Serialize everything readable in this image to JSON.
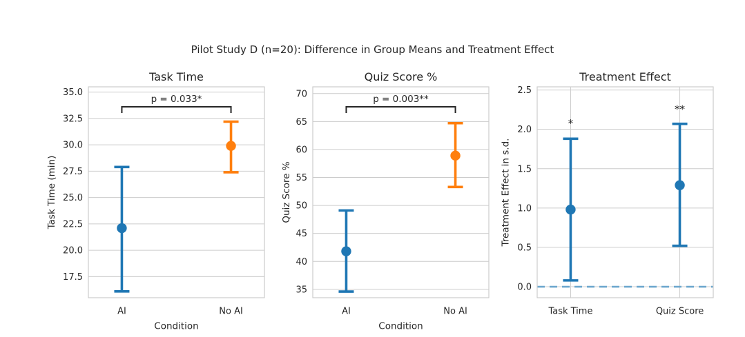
{
  "figure": {
    "suptitle": "Pilot Study D (n=20): Difference in Group Means and Treatment Effect",
    "background": "#ffffff",
    "text_color": "#262626",
    "grid_color": "#cccccc",
    "spine_color": "#cccccc",
    "annotation_color": "#262626",
    "accent_blue": "#1f77b4",
    "accent_orange": "#ff7f0e"
  },
  "chart_data": [
    {
      "type": "errorbar",
      "title": "Task Time",
      "ylabel": "Task Time (min)",
      "xlabel": "Condition",
      "ylim": [
        15.5,
        35.5
      ],
      "yticks": [
        17.5,
        20.0,
        22.5,
        25.0,
        27.5,
        30.0,
        32.5,
        35.0
      ],
      "ytick_decimals": 1,
      "grid_x": false,
      "legend": "none",
      "categories": [
        "AI",
        "No AI"
      ],
      "series": [
        {
          "category": "AI",
          "mean": 22.1,
          "ci_low": 16.1,
          "ci_high": 27.9,
          "color": "#1f77b4"
        },
        {
          "category": "No AI",
          "mean": 29.9,
          "ci_low": 27.4,
          "ci_high": 32.2,
          "color": "#ff7f0e"
        }
      ],
      "significance": {
        "label": "p = 0.033*",
        "from": "AI",
        "to": "No AI"
      }
    },
    {
      "type": "errorbar",
      "title": "Quiz Score %",
      "ylabel": "Quiz Score %",
      "xlabel": "Condition",
      "ylim": [
        33.5,
        71.2
      ],
      "yticks": [
        35,
        40,
        45,
        50,
        55,
        60,
        65,
        70
      ],
      "ytick_decimals": 0,
      "grid_x": false,
      "legend": "none",
      "categories": [
        "AI",
        "No AI"
      ],
      "series": [
        {
          "category": "AI",
          "mean": 41.8,
          "ci_low": 34.6,
          "ci_high": 49.1,
          "color": "#1f77b4"
        },
        {
          "category": "No AI",
          "mean": 58.9,
          "ci_low": 53.3,
          "ci_high": 64.7,
          "color": "#ff7f0e"
        }
      ],
      "significance": {
        "label": "p = 0.003**",
        "from": "AI",
        "to": "No AI"
      }
    },
    {
      "type": "errorbar",
      "title": "Treatment Effect",
      "ylabel": "Treatment Effect in s.d.",
      "xlabel": "",
      "ylim": [
        -0.14,
        2.54
      ],
      "yticks": [
        0.0,
        0.5,
        1.0,
        1.5,
        2.0,
        2.5
      ],
      "ytick_decimals": 1,
      "grid_x": true,
      "legend": "none",
      "categories": [
        "Task Time",
        "Quiz Score"
      ],
      "series": [
        {
          "category": "Task Time",
          "mean": 0.98,
          "ci_low": 0.08,
          "ci_high": 1.88,
          "color": "#1f77b4",
          "star": "*",
          "star_y": 2.12
        },
        {
          "category": "Quiz Score",
          "mean": 1.29,
          "ci_low": 0.52,
          "ci_high": 2.07,
          "color": "#1f77b4",
          "star": "**",
          "star_y": 2.3
        }
      ],
      "zero_line": {
        "y": 0,
        "color": "#6da7ce",
        "style": "dashed"
      }
    }
  ]
}
